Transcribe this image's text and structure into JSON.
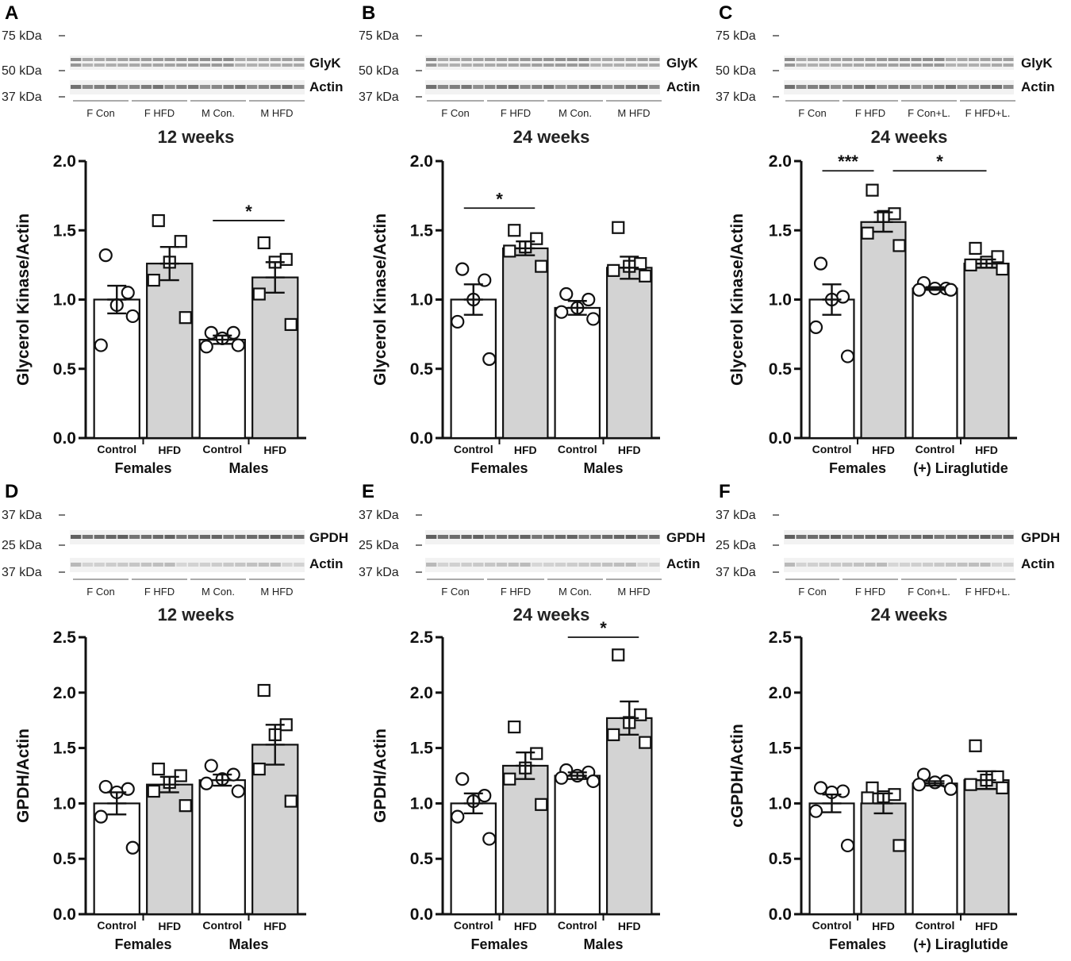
{
  "figure": {
    "colors": {
      "control_fill": "#ffffff",
      "hfd_fill": "#d3d3d3",
      "stroke": "#111111"
    }
  },
  "chart_data": [
    {
      "panel": "A",
      "type": "bar",
      "weeks": "12 weeks",
      "ylabel": "Glycerol Kinase/Actin",
      "ylim": [
        0,
        2.0
      ],
      "yticks": [
        "0.0",
        "0.5",
        "1.0",
        "1.5",
        "2.0"
      ],
      "categories": [
        "Control",
        "HFD",
        "Control",
        "HFD"
      ],
      "groups": [
        "Females",
        "Males"
      ],
      "values": [
        1.0,
        1.26,
        0.71,
        1.16
      ],
      "sem": [
        0.1,
        0.12,
        0.03,
        0.11
      ],
      "points": [
        [
          1.32,
          1.05,
          0.96,
          0.67,
          0.88
        ],
        [
          1.57,
          1.42,
          1.27,
          1.14,
          0.87
        ],
        [
          0.76,
          0.76,
          0.72,
          0.66,
          0.67
        ],
        [
          1.41,
          1.29,
          1.27,
          1.04,
          0.82
        ]
      ],
      "blot": {
        "kda": [
          "75 kDa",
          "50 kDa",
          "37 kDa"
        ],
        "bands": [
          "GlyK",
          "Actin"
        ],
        "lanes": [
          "F Con",
          "F HFD",
          "M Con.",
          "M HFD"
        ]
      },
      "significance": [
        {
          "from": 2,
          "to": 3,
          "label": "*"
        }
      ]
    },
    {
      "panel": "B",
      "type": "bar",
      "weeks": "24 weeks",
      "ylabel": "Glycerol Kinase/Actin",
      "ylim": [
        0,
        2.0
      ],
      "yticks": [
        "0.0",
        "0.5",
        "1.0",
        "1.5",
        "2.0"
      ],
      "categories": [
        "Control",
        "HFD",
        "Control",
        "HFD"
      ],
      "groups": [
        "Females",
        "Males"
      ],
      "values": [
        1.0,
        1.37,
        0.94,
        1.23
      ],
      "sem": [
        0.11,
        0.05,
        0.05,
        0.08
      ],
      "points": [
        [
          1.22,
          1.14,
          1.0,
          0.84,
          0.57
        ],
        [
          1.5,
          1.44,
          1.38,
          1.35,
          1.24
        ],
        [
          1.04,
          1.0,
          0.94,
          0.91,
          0.86
        ],
        [
          1.52,
          1.26,
          1.24,
          1.21,
          1.17
        ]
      ],
      "blot": {
        "kda": [
          "75 kDa",
          "50 kDa",
          "37 kDa"
        ],
        "bands": [
          "GlyK",
          "Actin"
        ],
        "lanes": [
          "F Con",
          "F HFD",
          "M Con.",
          "M HFD"
        ]
      },
      "significance": [
        {
          "from": 0,
          "to": 1,
          "label": "*"
        }
      ]
    },
    {
      "panel": "C",
      "type": "bar",
      "weeks": "24 weeks",
      "ylabel": "Glycerol Kinase/Actin",
      "ylim": [
        0,
        2.0
      ],
      "yticks": [
        "0.0",
        "0.5",
        "1.0",
        "1.5",
        "2.0"
      ],
      "categories": [
        "Control",
        "HFD",
        "Control",
        "HFD"
      ],
      "groups": [
        "Females",
        "(+) Liraglutide"
      ],
      "values": [
        1.0,
        1.56,
        1.08,
        1.26
      ],
      "sem": [
        0.11,
        0.07,
        0.01,
        0.03
      ],
      "points": [
        [
          1.26,
          1.02,
          1.0,
          0.8,
          0.59
        ],
        [
          1.79,
          1.62,
          1.6,
          1.48,
          1.39
        ],
        [
          1.12,
          1.08,
          1.08,
          1.07,
          1.07
        ],
        [
          1.37,
          1.31,
          1.27,
          1.25,
          1.22
        ]
      ],
      "blot": {
        "kda": [
          "75 kDa",
          "50 kDa",
          "37 kDa"
        ],
        "bands": [
          "GlyK",
          "Actin"
        ],
        "lanes": [
          "F Con",
          "F HFD",
          "F Con+L.",
          "F HFD+L."
        ]
      },
      "significance": [
        {
          "from": 0,
          "to": 1,
          "label": "***"
        },
        {
          "from": 1,
          "to": 3,
          "label": "*"
        }
      ]
    },
    {
      "panel": "D",
      "type": "bar",
      "weeks": "12 weeks",
      "ylabel": "GPDH/Actin",
      "ylim": [
        0,
        2.5
      ],
      "yticks": [
        "0.0",
        "0.5",
        "1.0",
        "1.5",
        "2.0",
        "2.5"
      ],
      "categories": [
        "Control",
        "HFD",
        "Control",
        "HFD"
      ],
      "groups": [
        "Females",
        "Males"
      ],
      "values": [
        1.0,
        1.17,
        1.21,
        1.53
      ],
      "sem": [
        0.1,
        0.07,
        0.05,
        0.18
      ],
      "points": [
        [
          1.15,
          1.13,
          1.1,
          0.88,
          0.6
        ],
        [
          1.31,
          1.25,
          1.19,
          1.11,
          0.98
        ],
        [
          1.34,
          1.26,
          1.22,
          1.18,
          1.11
        ],
        [
          2.02,
          1.71,
          1.62,
          1.31,
          1.02
        ]
      ],
      "blot": {
        "kda": [
          "37 kDa",
          "25 kDa",
          "37 kDa"
        ],
        "bands": [
          "GPDH",
          "Actin"
        ],
        "lanes": [
          "F Con",
          "F HFD",
          "M Con.",
          "M HFD"
        ]
      },
      "significance": []
    },
    {
      "panel": "E",
      "type": "bar",
      "weeks": "24 weeks",
      "ylabel": "GPDH/Actin",
      "ylim": [
        0,
        2.5
      ],
      "yticks": [
        "0.0",
        "0.5",
        "1.0",
        "1.5",
        "2.0",
        "2.5"
      ],
      "categories": [
        "Control",
        "HFD",
        "Control",
        "HFD"
      ],
      "groups": [
        "Females",
        "Males"
      ],
      "values": [
        1.0,
        1.34,
        1.25,
        1.77
      ],
      "sem": [
        0.09,
        0.12,
        0.03,
        0.15
      ],
      "points": [
        [
          1.22,
          1.07,
          1.02,
          0.88,
          0.68
        ],
        [
          1.69,
          1.45,
          1.32,
          1.22,
          0.99
        ],
        [
          1.3,
          1.28,
          1.25,
          1.23,
          1.2
        ],
        [
          2.34,
          1.8,
          1.73,
          1.62,
          1.55
        ]
      ],
      "blot": {
        "kda": [
          "37 kDa",
          "25 kDa",
          "37 kDa"
        ],
        "bands": [
          "GPDH",
          "Actin"
        ],
        "lanes": [
          "F Con",
          "F HFD",
          "M Con.",
          "M HFD"
        ]
      },
      "significance": [
        {
          "from": 2,
          "to": 3,
          "label": "*"
        }
      ]
    },
    {
      "panel": "F",
      "type": "bar",
      "weeks": "24 weeks",
      "ylabel": "cGPDH/Actin",
      "ylim": [
        0,
        2.5
      ],
      "yticks": [
        "0.0",
        "0.5",
        "1.0",
        "1.5",
        "2.0",
        "2.5"
      ],
      "categories": [
        "Control",
        "HFD",
        "Control",
        "HFD"
      ],
      "groups": [
        "Females",
        "(+) Liraglutide"
      ],
      "values": [
        1.0,
        1.0,
        1.18,
        1.21
      ],
      "sem": [
        0.08,
        0.09,
        0.02,
        0.08
      ],
      "points": [
        [
          1.14,
          1.11,
          1.1,
          0.93,
          0.62
        ],
        [
          1.14,
          1.08,
          1.06,
          1.05,
          0.62
        ],
        [
          1.26,
          1.2,
          1.19,
          1.17,
          1.13
        ],
        [
          1.52,
          1.24,
          1.21,
          1.17,
          1.14
        ]
      ],
      "blot": {
        "kda": [
          "37 kDa",
          "25 kDa",
          "37 kDa"
        ],
        "bands": [
          "GPDH",
          "Actin"
        ],
        "lanes": [
          "F Con",
          "F HFD",
          "F Con+L.",
          "F HFD+L."
        ]
      },
      "significance": []
    }
  ]
}
